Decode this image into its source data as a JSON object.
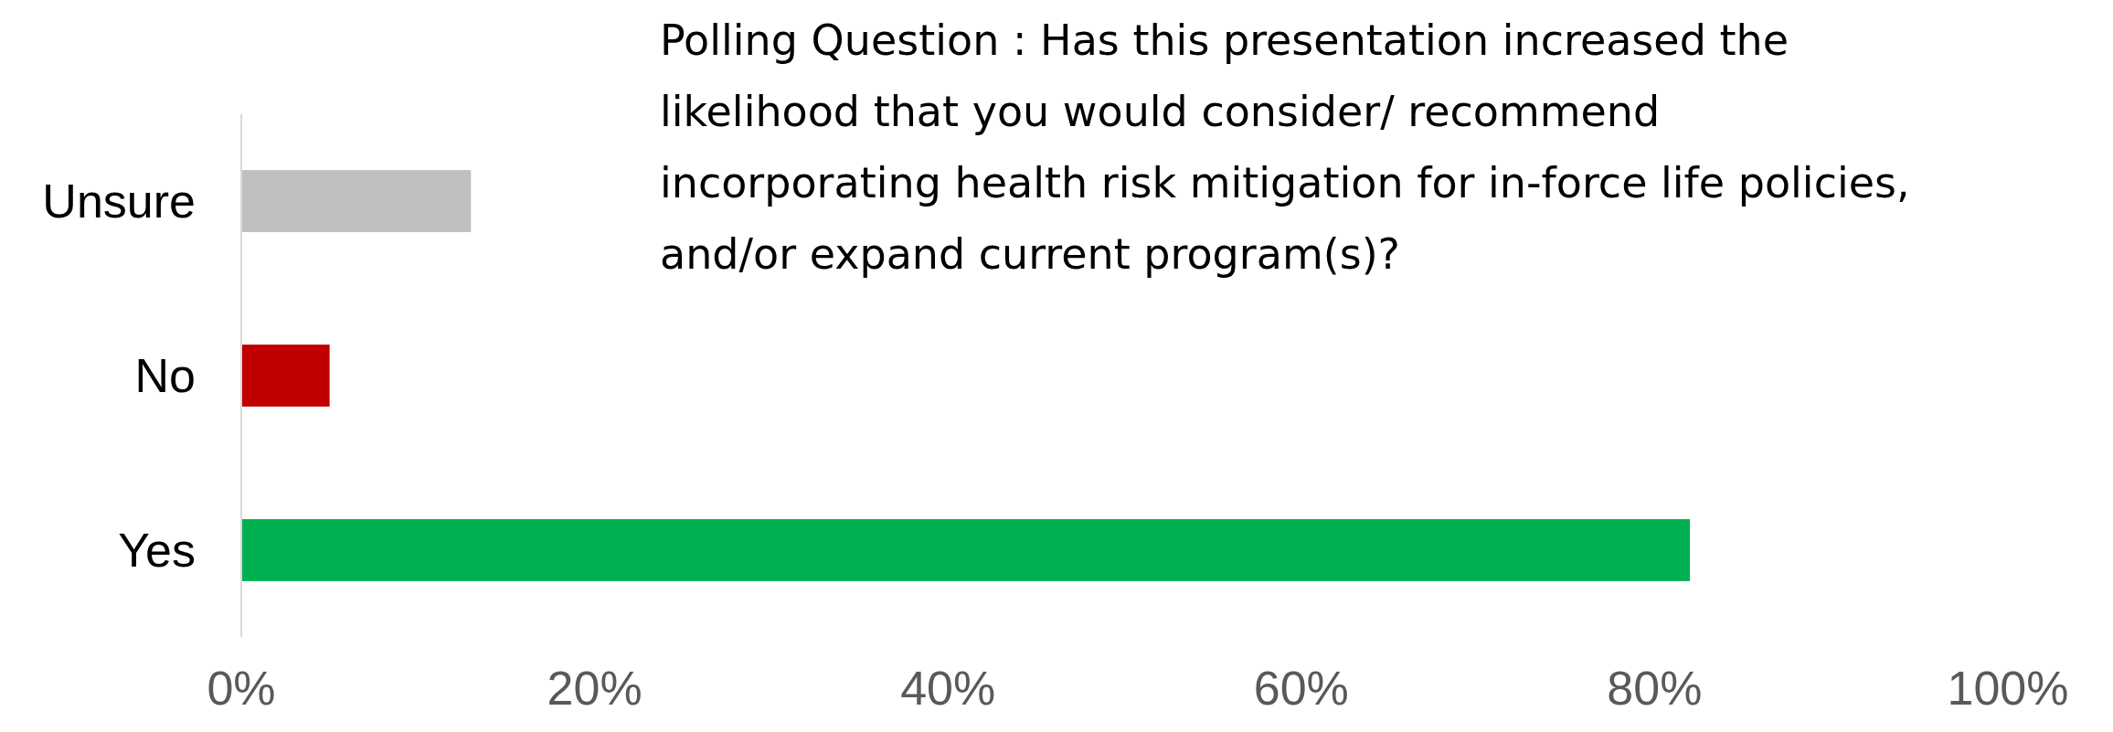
{
  "chart_data": {
    "type": "bar",
    "orientation": "horizontal",
    "title": "Polling Question : Has this presentation increased the likelihood that you would consider/ recommend incorporating health risk mitigation for in-force life policies, and/or expand current program(s)?",
    "categories": [
      "Unsure",
      "No",
      "Yes"
    ],
    "values": [
      13,
      5,
      82
    ],
    "colors": [
      "#bfbfbf",
      "#c00000",
      "#00b050"
    ],
    "xlim": [
      0,
      100
    ],
    "xticks": [
      {
        "value": 0,
        "label": "0%"
      },
      {
        "value": 20,
        "label": "20%"
      },
      {
        "value": 40,
        "label": "40%"
      },
      {
        "value": 60,
        "label": "60%"
      },
      {
        "value": 80,
        "label": "80%"
      },
      {
        "value": 100,
        "label": "100%"
      }
    ],
    "grid": false
  }
}
